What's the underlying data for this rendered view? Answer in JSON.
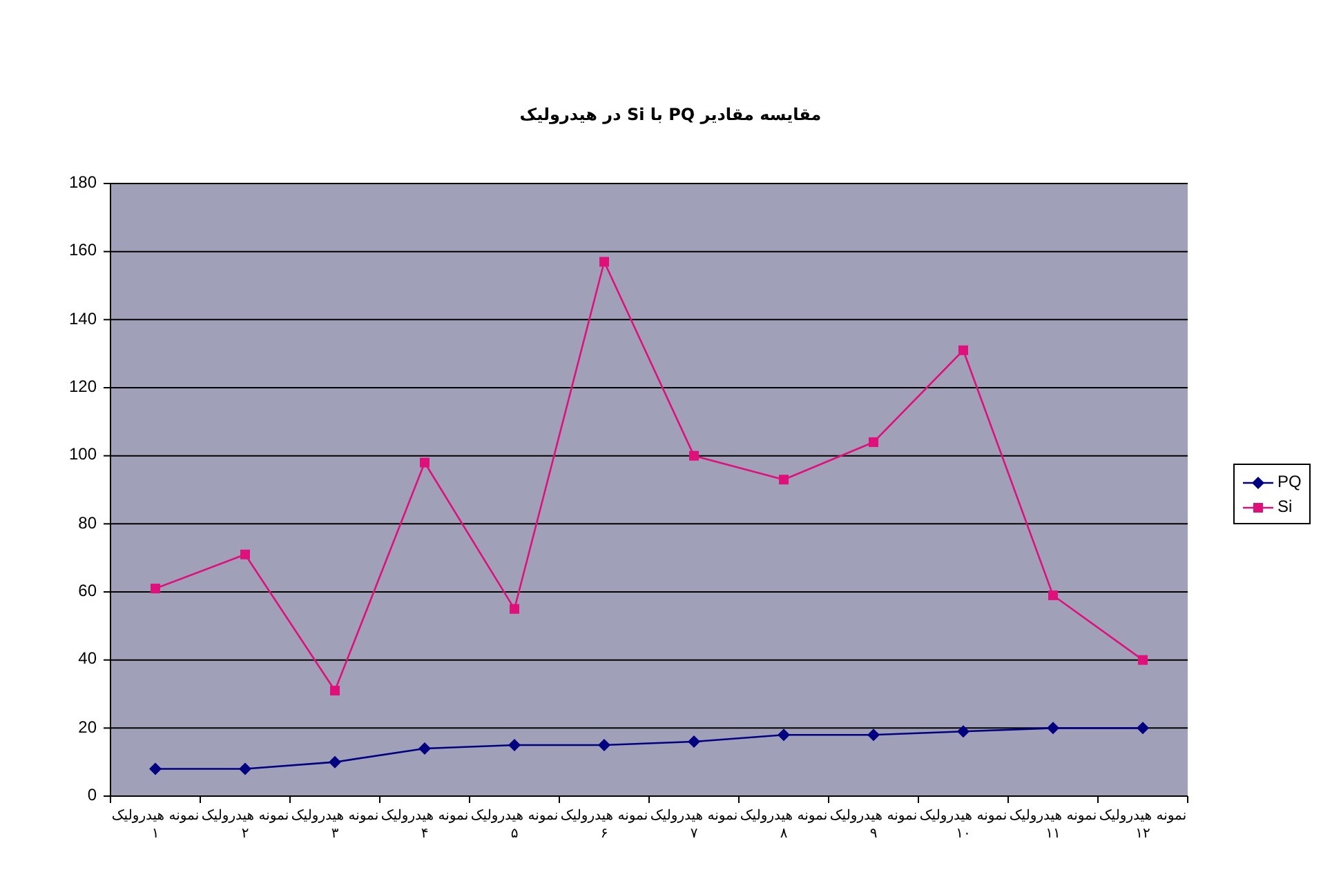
{
  "chart_data": {
    "type": "line",
    "title": "مقایسه مقادیر PQ با Si در هیدرولیک",
    "categories": [
      "نمونه هیدرولیک ۱",
      "نمونه هیدرولیک ۲",
      "نمونه هیدرولیک ۳",
      "نمونه هیدرولیک ۴",
      "نمونه هیدرولیک ۵",
      "نمونه هیدرولیک ۶",
      "نمونه هیدرولیک ۷",
      "نمونه هیدرولیک ۸",
      "نمونه هیدرولیک ۹",
      "نمونه هیدرولیک ۱۰",
      "نمونه هیدرولیک ۱۱",
      "نمونه هیدرولیک ۱۲"
    ],
    "series": [
      {
        "name": "PQ",
        "color": "#000080",
        "marker": "diamond",
        "values": [
          8,
          8,
          10,
          14,
          15,
          15,
          16,
          18,
          18,
          19,
          20,
          20
        ]
      },
      {
        "name": "Si",
        "color": "#e0107a",
        "marker": "square",
        "values": [
          61,
          71,
          31,
          98,
          55,
          157,
          100,
          93,
          104,
          131,
          59,
          40
        ]
      }
    ],
    "ylim": [
      0,
      180
    ],
    "yticks": [
      0,
      20,
      40,
      60,
      80,
      100,
      120,
      140,
      160,
      180
    ],
    "grid": "y",
    "legend": "right"
  }
}
